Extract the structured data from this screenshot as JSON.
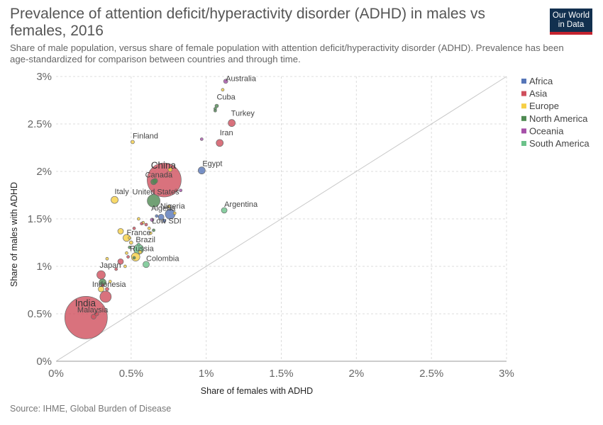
{
  "header": {
    "title": "Prevalence of attention deficit/hyperactivity disorder (ADHD) in males vs females, 2016",
    "subtitle": "Share of male population, versus share of female population with attention deficit/hyperactivity disorder (ADHD). Prevalence has been age-standardized for comparison between countries and through time.",
    "logo_line1": "Our World",
    "logo_line2": "in Data"
  },
  "footer": {
    "source": "Source: IHME, Global Burden of Disease"
  },
  "colors": {
    "Africa": "#5676b8",
    "Asia": "#cf4f5c",
    "Europe": "#f6cf45",
    "North America": "#4f8a52",
    "Oceania": "#a650a8",
    "South America": "#6cc28a"
  },
  "chart_data": {
    "type": "scatter",
    "xlabel": "Share of females with ADHD",
    "ylabel": "Share of males with ADHD",
    "xlim": [
      0,
      3
    ],
    "ylim": [
      0,
      3
    ],
    "x_ticks": [
      "0%",
      "0.5%",
      "1%",
      "1.5%",
      "2%",
      "2.5%",
      "3%"
    ],
    "y_ticks": [
      "0%",
      "0.5%",
      "1%",
      "1.5%",
      "2%",
      "2.5%",
      "3%"
    ],
    "grid": true,
    "diagonal_line": true,
    "legend_position": "right",
    "legend": [
      "Africa",
      "Asia",
      "Europe",
      "North America",
      "Oceania",
      "South America"
    ],
    "points": [
      {
        "label": "India",
        "region": "Asia",
        "x": 0.2,
        "y": 0.46,
        "size": 30,
        "big": true
      },
      {
        "label": "China",
        "region": "Asia",
        "x": 0.72,
        "y": 1.91,
        "size": 24,
        "big": true
      },
      {
        "label": "United States",
        "region": "North America",
        "x": 0.65,
        "y": 1.69,
        "size": 9
      },
      {
        "label": "Indonesia",
        "region": "Asia",
        "x": 0.33,
        "y": 0.68,
        "size": 8
      },
      {
        "label": "Brazil",
        "region": "South America",
        "x": 0.55,
        "y": 1.18,
        "size": 7
      },
      {
        "label": "Nigeria",
        "region": "Africa",
        "x": 0.76,
        "y": 1.55,
        "size": 7
      },
      {
        "label": "Russia",
        "region": "Europe",
        "x": 0.53,
        "y": 1.1,
        "size": 6
      },
      {
        "label": "Japan",
        "region": "Asia",
        "x": 0.3,
        "y": 0.91,
        "size": 6
      },
      {
        "label": "Egypt",
        "region": "Africa",
        "x": 0.97,
        "y": 2.01,
        "size": 5
      },
      {
        "label": "Iran",
        "region": "Asia",
        "x": 1.09,
        "y": 2.3,
        "size": 5
      },
      {
        "label": "Turkey",
        "region": "Asia",
        "x": 1.17,
        "y": 2.51,
        "size": 5
      },
      {
        "label": "Colombia",
        "region": "South America",
        "x": 0.6,
        "y": 1.02,
        "size": 4.5
      },
      {
        "label": "France",
        "region": "Europe",
        "x": 0.47,
        "y": 1.3,
        "size": 5
      },
      {
        "label": "Italy",
        "region": "Europe",
        "x": 0.39,
        "y": 1.7,
        "size": 5
      },
      {
        "label": "Algeria",
        "region": "Africa",
        "x": 0.7,
        "y": 1.52,
        "size": 4
      },
      {
        "label": "Canada",
        "region": "North America",
        "x": 0.65,
        "y": 1.89,
        "size": 4
      },
      {
        "label": "Argentina",
        "region": "South America",
        "x": 1.12,
        "y": 1.59,
        "size": 4
      },
      {
        "label": "Cuba",
        "region": "North America",
        "x": 1.07,
        "y": 2.69,
        "size": 2.5
      },
      {
        "label": "Australia",
        "region": "Oceania",
        "x": 1.13,
        "y": 2.95,
        "size": 3
      },
      {
        "label": "Finland",
        "region": "Europe",
        "x": 0.51,
        "y": 2.31,
        "size": 2.5
      },
      {
        "label": "Malaysia",
        "region": "Asia",
        "x": 0.25,
        "y": 0.47,
        "size": 3.5
      },
      {
        "label": "Low SDI",
        "region": "Africa",
        "x": 0.7,
        "y": 1.43,
        "size": 0
      },
      {
        "label": "",
        "region": "Asia",
        "x": 0.27,
        "y": 0.5,
        "size": 3
      },
      {
        "label": "",
        "region": "Europe",
        "x": 0.3,
        "y": 0.76,
        "size": 4
      },
      {
        "label": "",
        "region": "North America",
        "x": 0.31,
        "y": 0.83,
        "size": 5
      },
      {
        "label": "",
        "region": "Asia",
        "x": 0.43,
        "y": 1.05,
        "size": 4
      },
      {
        "label": "",
        "region": "Europe",
        "x": 0.43,
        "y": 1.37,
        "size": 4
      },
      {
        "label": "",
        "region": "North America",
        "x": 0.66,
        "y": 1.9,
        "size": 3.5
      },
      {
        "label": "",
        "region": "Europe",
        "x": 0.76,
        "y": 2.02,
        "size": 3
      },
      {
        "label": "",
        "region": "Oceania",
        "x": 0.97,
        "y": 2.34,
        "size": 2
      },
      {
        "label": "",
        "region": "Europe",
        "x": 1.11,
        "y": 2.86,
        "size": 2
      },
      {
        "label": "",
        "region": "North America",
        "x": 1.06,
        "y": 2.64,
        "size": 2
      },
      {
        "label": "",
        "region": "North America",
        "x": 1.06,
        "y": 2.66,
        "size": 2
      },
      {
        "label": "",
        "region": "Europe",
        "x": 0.58,
        "y": 1.46,
        "size": 2
      },
      {
        "label": "",
        "region": "Asia",
        "x": 0.57,
        "y": 1.45,
        "size": 2
      },
      {
        "label": "",
        "region": "Oceania",
        "x": 0.64,
        "y": 1.49,
        "size": 2.5
      },
      {
        "label": "",
        "region": "Europe",
        "x": 0.62,
        "y": 1.4,
        "size": 2
      },
      {
        "label": "",
        "region": "Africa",
        "x": 0.72,
        "y": 1.48,
        "size": 2.5
      },
      {
        "label": "",
        "region": "Asia",
        "x": 0.52,
        "y": 1.4,
        "size": 2
      },
      {
        "label": "",
        "region": "Europe",
        "x": 0.5,
        "y": 1.25,
        "size": 2.5
      },
      {
        "label": "",
        "region": "North America",
        "x": 0.49,
        "y": 1.2,
        "size": 2
      },
      {
        "label": "",
        "region": "Europe",
        "x": 0.47,
        "y": 1.14,
        "size": 2
      },
      {
        "label": "",
        "region": "North America",
        "x": 0.52,
        "y": 1.09,
        "size": 2
      },
      {
        "label": "",
        "region": "Asia",
        "x": 0.48,
        "y": 1.1,
        "size": 2
      },
      {
        "label": "",
        "region": "Europe",
        "x": 0.56,
        "y": 1.15,
        "size": 2.5
      },
      {
        "label": "",
        "region": "South America",
        "x": 0.55,
        "y": 1.23,
        "size": 2
      },
      {
        "label": "",
        "region": "Europe",
        "x": 0.46,
        "y": 1.0,
        "size": 2
      },
      {
        "label": "",
        "region": "Asia",
        "x": 0.4,
        "y": 0.97,
        "size": 2
      },
      {
        "label": "",
        "region": "Europe",
        "x": 0.34,
        "y": 1.08,
        "size": 2
      },
      {
        "label": "",
        "region": "Asia",
        "x": 0.31,
        "y": 0.8,
        "size": 2
      },
      {
        "label": "",
        "region": "Europe",
        "x": 0.36,
        "y": 0.84,
        "size": 2
      },
      {
        "label": "",
        "region": "Asia",
        "x": 0.34,
        "y": 0.76,
        "size": 2.5
      },
      {
        "label": "",
        "region": "Europe",
        "x": 0.49,
        "y": 1.3,
        "size": 2
      },
      {
        "label": "",
        "region": "Europe",
        "x": 0.55,
        "y": 1.5,
        "size": 2
      },
      {
        "label": "",
        "region": "Asia",
        "x": 0.6,
        "y": 1.44,
        "size": 2
      },
      {
        "label": "",
        "region": "Europe",
        "x": 0.63,
        "y": 1.35,
        "size": 2
      },
      {
        "label": "",
        "region": "North America",
        "x": 0.65,
        "y": 1.38,
        "size": 2
      },
      {
        "label": "",
        "region": "Africa",
        "x": 0.67,
        "y": 1.53,
        "size": 2
      },
      {
        "label": "",
        "region": "Europe",
        "x": 0.79,
        "y": 1.56,
        "size": 2
      },
      {
        "label": "",
        "region": "Asia",
        "x": 0.8,
        "y": 1.8,
        "size": 2
      },
      {
        "label": "",
        "region": "Europe",
        "x": 0.75,
        "y": 1.63,
        "size": 2
      },
      {
        "label": "",
        "region": "Oceania",
        "x": 0.83,
        "y": 1.8,
        "size": 2
      }
    ]
  }
}
